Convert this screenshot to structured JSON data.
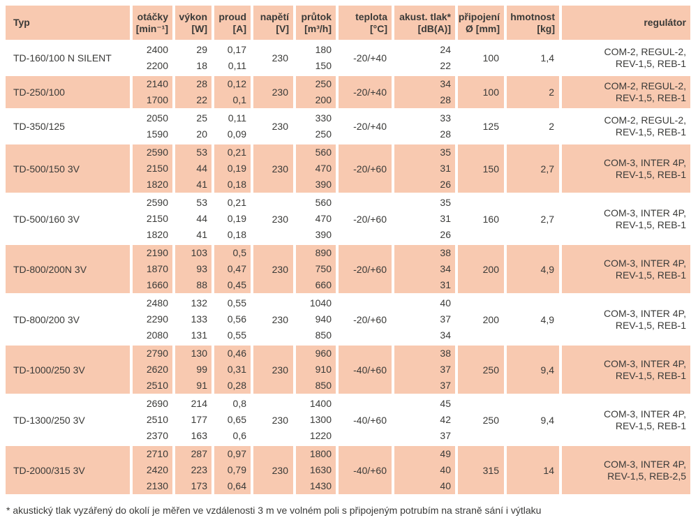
{
  "colors": {
    "row_shade": "#f8c9b0",
    "text": "#3a3a38",
    "background": "#ffffff"
  },
  "table": {
    "headers": [
      {
        "key": "typ",
        "label": "Typ",
        "unit": ""
      },
      {
        "key": "otacky",
        "label": "otáčky",
        "unit": "[min⁻¹]"
      },
      {
        "key": "vykon",
        "label": "výkon",
        "unit": "[W]"
      },
      {
        "key": "proud",
        "label": "proud",
        "unit": "[A]"
      },
      {
        "key": "napeti",
        "label": "napětí",
        "unit": "[V]"
      },
      {
        "key": "prutok",
        "label": "průtok",
        "unit": "[m³/h]"
      },
      {
        "key": "teplota",
        "label": "teplota",
        "unit": "[°C]"
      },
      {
        "key": "akust",
        "label": "akust. tlak*",
        "unit": "[dB(A)]"
      },
      {
        "key": "pripojeni",
        "label": "připojení",
        "unit": "Ø [mm]"
      },
      {
        "key": "hmotnost",
        "label": "hmotnost",
        "unit": "[kg]"
      },
      {
        "key": "regulator",
        "label": "regulátor",
        "unit": ""
      }
    ],
    "rows": [
      {
        "typ": "TD-160/100 N SILENT",
        "otacky": [
          "2400",
          "2200"
        ],
        "vykon": [
          "29",
          "18"
        ],
        "proud": [
          "0,17",
          "0,11"
        ],
        "napeti": "230",
        "prutok": [
          "180",
          "150"
        ],
        "teplota": "-20/+40",
        "akust_tlak": [
          "24",
          "22"
        ],
        "pripojeni": "100",
        "hmotnost": "1,4",
        "regulator": [
          "COM-2, REGUL-2,",
          "REV-1,5, REB-1"
        ]
      },
      {
        "typ": "TD-250/100",
        "otacky": [
          "2140",
          "1700"
        ],
        "vykon": [
          "28",
          "22"
        ],
        "proud": [
          "0,12",
          "0,1"
        ],
        "napeti": "230",
        "prutok": [
          "250",
          "200"
        ],
        "teplota": "-20/+40",
        "akust_tlak": [
          "34",
          "28"
        ],
        "pripojeni": "100",
        "hmotnost": "2",
        "regulator": [
          "COM-2, REGUL-2,",
          "REV-1,5, REB-1"
        ]
      },
      {
        "typ": "TD-350/125",
        "otacky": [
          "2050",
          "1590"
        ],
        "vykon": [
          "25",
          "20"
        ],
        "proud": [
          "0,11",
          "0,09"
        ],
        "napeti": "230",
        "prutok": [
          "330",
          "250"
        ],
        "teplota": "-20/+40",
        "akust_tlak": [
          "33",
          "28"
        ],
        "pripojeni": "125",
        "hmotnost": "2",
        "regulator": [
          "COM-2, REGUL-2,",
          "REV-1,5, REB-1"
        ]
      },
      {
        "typ": "TD-500/150 3V",
        "otacky": [
          "2590",
          "2150",
          "1820"
        ],
        "vykon": [
          "53",
          "44",
          "41"
        ],
        "proud": [
          "0,21",
          "0,19",
          "0,18"
        ],
        "napeti": "230",
        "prutok": [
          "560",
          "470",
          "390"
        ],
        "teplota": "-20/+60",
        "akust_tlak": [
          "35",
          "31",
          "26"
        ],
        "pripojeni": "150",
        "hmotnost": "2,7",
        "regulator": [
          "COM-3, INTER 4P,",
          "REV-1,5, REB-1"
        ]
      },
      {
        "typ": "TD-500/160 3V",
        "otacky": [
          "2590",
          "2150",
          "1820"
        ],
        "vykon": [
          "53",
          "44",
          "41"
        ],
        "proud": [
          "0,21",
          "0,19",
          "0,18"
        ],
        "napeti": "230",
        "prutok": [
          "560",
          "470",
          "390"
        ],
        "teplota": "-20/+60",
        "akust_tlak": [
          "35",
          "31",
          "26"
        ],
        "pripojeni": "160",
        "hmotnost": "2,7",
        "regulator": [
          "COM-3, INTER 4P,",
          "REV-1,5, REB-1"
        ]
      },
      {
        "typ": "TD-800/200N 3V",
        "otacky": [
          "2190",
          "1870",
          "1660"
        ],
        "vykon": [
          "103",
          "93",
          "88"
        ],
        "proud": [
          "0,5",
          "0,47",
          "0,45"
        ],
        "napeti": "230",
        "prutok": [
          "890",
          "750",
          "660"
        ],
        "teplota": "-20/+60",
        "akust_tlak": [
          "38",
          "34",
          "31"
        ],
        "pripojeni": "200",
        "hmotnost": "4,9",
        "regulator": [
          "COM-3, INTER 4P,",
          "REV-1,5, REB-1"
        ]
      },
      {
        "typ": "TD-800/200 3V",
        "otacky": [
          "2480",
          "2290",
          "2080"
        ],
        "vykon": [
          "132",
          "133",
          "131"
        ],
        "proud": [
          "0,55",
          "0,56",
          "0,55"
        ],
        "napeti": "230",
        "prutok": [
          "1040",
          "940",
          "850"
        ],
        "teplota": "-20/+60",
        "akust_tlak": [
          "40",
          "37",
          "34"
        ],
        "pripojeni": "200",
        "hmotnost": "4,9",
        "regulator": [
          "COM-3, INTER 4P,",
          "REV-1,5, REB-1"
        ]
      },
      {
        "typ": "TD-1000/250 3V",
        "otacky": [
          "2790",
          "2620",
          "2510"
        ],
        "vykon": [
          "130",
          "99",
          "91"
        ],
        "proud": [
          "0,46",
          "0,31",
          "0,28"
        ],
        "napeti": "230",
        "prutok": [
          "960",
          "910",
          "850"
        ],
        "teplota": "-40/+60",
        "akust_tlak": [
          "38",
          "37",
          "37"
        ],
        "pripojeni": "250",
        "hmotnost": "9,4",
        "regulator": [
          "COM-3, INTER 4P,",
          "REV-1,5, REB-1"
        ]
      },
      {
        "typ": "TD-1300/250 3V",
        "otacky": [
          "2690",
          "2510",
          "2370"
        ],
        "vykon": [
          "214",
          "177",
          "163"
        ],
        "proud": [
          "0,8",
          "0,65",
          "0,6"
        ],
        "napeti": "230",
        "prutok": [
          "1400",
          "1300",
          "1220"
        ],
        "teplota": "-40/+60",
        "akust_tlak": [
          "45",
          "42",
          "37"
        ],
        "pripojeni": "250",
        "hmotnost": "9,4",
        "regulator": [
          "COM-3, INTER 4P,",
          "REV-1,5, REB-1"
        ]
      },
      {
        "typ": "TD-2000/315 3V",
        "otacky": [
          "2710",
          "2420",
          "2130"
        ],
        "vykon": [
          "287",
          "223",
          "173"
        ],
        "proud": [
          "0,97",
          "0,79",
          "0,64"
        ],
        "napeti": "230",
        "prutok": [
          "1800",
          "1630",
          "1430"
        ],
        "teplota": "-40/+60",
        "akust_tlak": [
          "49",
          "40",
          "40"
        ],
        "pripojeni": "315",
        "hmotnost": "14",
        "regulator": [
          "COM-3, INTER 4P,",
          "REV-1,5, REB-2,5"
        ]
      }
    ]
  },
  "footnote": "* akustický tlak vyzářený do okolí je měřen ve vzdálenosti 3 m ve volném poli s připojeným potrubím na straně sání i výtlaku"
}
